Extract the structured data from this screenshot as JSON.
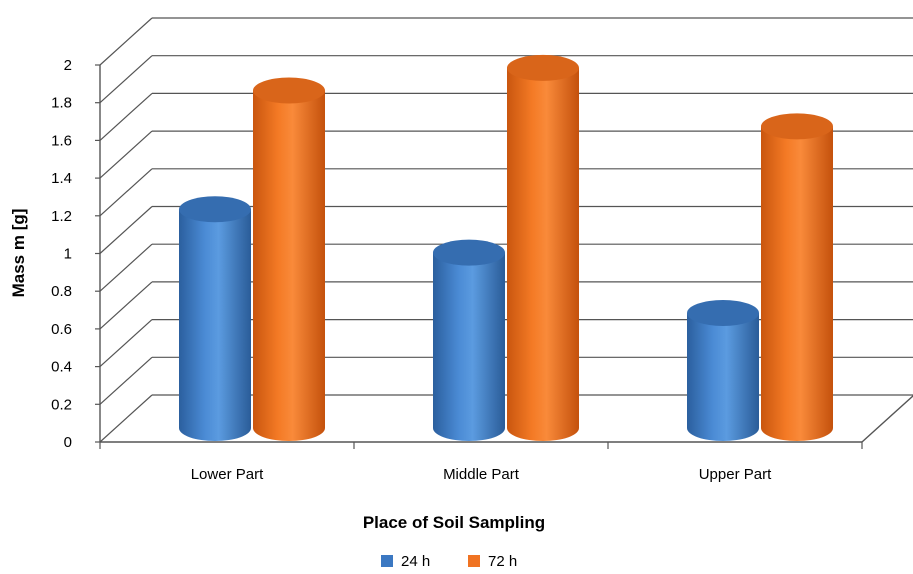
{
  "chart_data": {
    "type": "bar",
    "style": "3d-cylinder",
    "title": "",
    "xlabel": "Place of Soil Sampling",
    "ylabel": "Mass m [g]",
    "ylim": [
      0,
      2
    ],
    "yticks": [
      "0",
      "0.2",
      "0.4",
      "0.6",
      "0.8",
      "1",
      "1.2",
      "1.4",
      "1.6",
      "1.8",
      "2"
    ],
    "categories": [
      "Lower Part",
      "Middle Part",
      "Upper Part"
    ],
    "series": [
      {
        "name": "24 h",
        "color": "#3b78c2",
        "values": [
          1.2,
          0.97,
          0.65
        ]
      },
      {
        "name": "72 h",
        "color": "#f07322",
        "values": [
          1.83,
          1.95,
          1.64
        ]
      }
    ],
    "grid": true,
    "legend_position": "bottom"
  }
}
